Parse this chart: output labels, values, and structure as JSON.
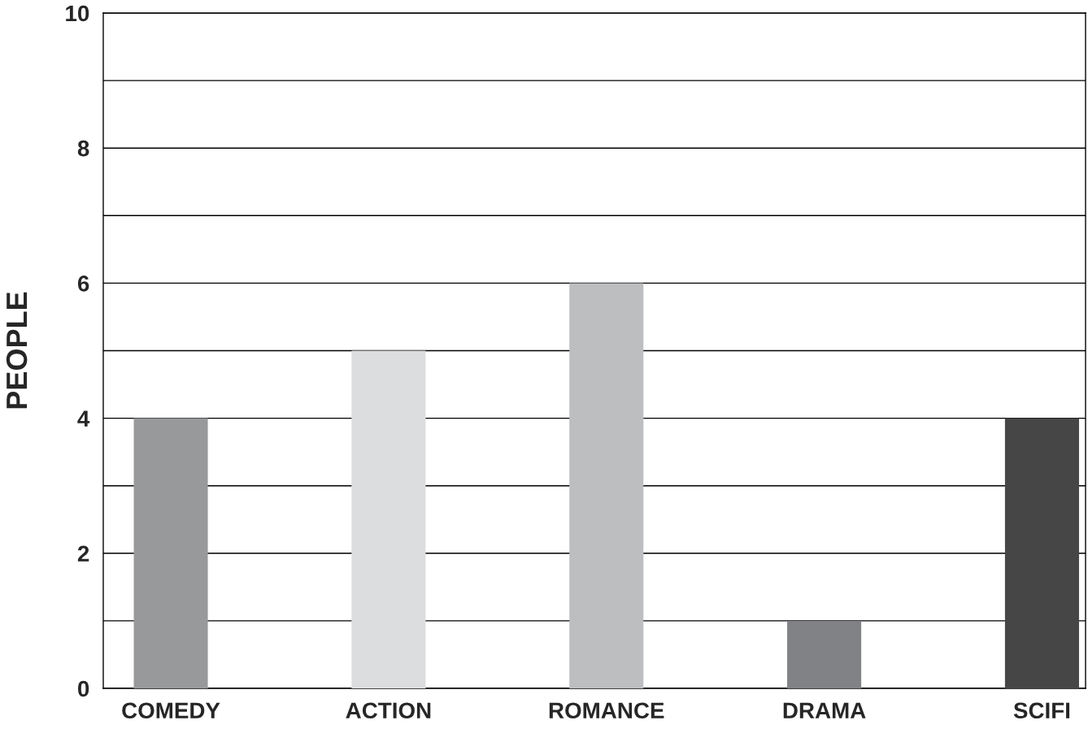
{
  "chart_data": {
    "type": "bar",
    "ylabel": "PEOPLE",
    "categories": [
      "COMEDY",
      "ACTION",
      "ROMANCE",
      "DRAMA",
      "SCIFI"
    ],
    "values": [
      4,
      5,
      6,
      1,
      4
    ],
    "colors": [
      "#98999b",
      "#dcdddf",
      "#bdbec0",
      "#818285",
      "#464646"
    ],
    "ylim": [
      0,
      10
    ],
    "yticks": [
      0,
      {
        "value": 1,
        "label": null
      },
      2,
      {
        "value": 3,
        "label": null
      },
      4,
      {
        "value": 5,
        "label": null
      },
      6,
      {
        "value": 7,
        "label": null
      },
      8,
      {
        "value": 9,
        "label": null
      },
      10
    ],
    "grid": "y"
  }
}
